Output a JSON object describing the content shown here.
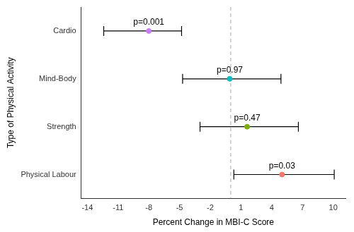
{
  "chart_data": {
    "type": "scatter",
    "x_label": "Percent Change in MBI-C Score",
    "y_label": "Type of Physical Activity",
    "categories": [
      "Cardio",
      "Mind-Body",
      "Strength",
      "Physical Labour"
    ],
    "values": [
      -8.0,
      -0.1,
      1.6,
      5.0
    ],
    "ci_lower": [
      -12.4,
      -4.7,
      -3.0,
      0.3
    ],
    "ci_upper": [
      -4.8,
      4.9,
      6.6,
      10.1
    ],
    "colors": [
      "#C77CFF",
      "#00BFC4",
      "#7CAE00",
      "#F8766D"
    ],
    "annotations": [
      "p=0.001",
      "p=0.97",
      "p=0.47",
      "p=0.03"
    ],
    "reference_line": {
      "value": 0,
      "line_style": "dashed"
    },
    "xlim": [
      -14.6,
      11.2
    ],
    "xticks": [
      -14,
      -11,
      -8,
      -5,
      -2,
      1,
      4,
      7,
      10
    ],
    "grid": false
  }
}
